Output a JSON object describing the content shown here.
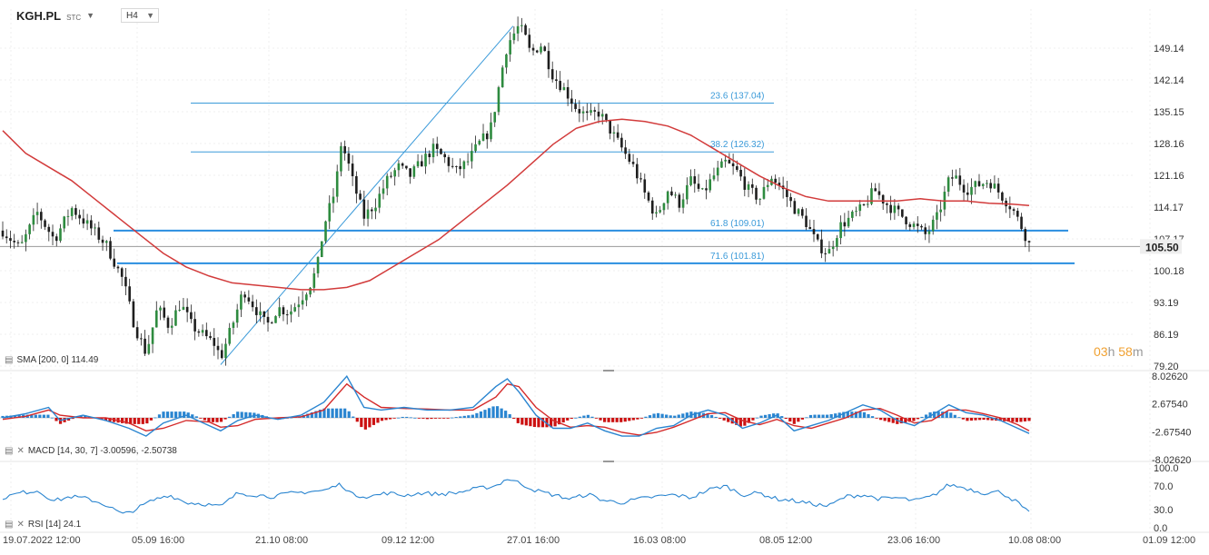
{
  "header": {
    "symbol": "KGH.PL",
    "exchange": "STC",
    "timeframe": "H4"
  },
  "countdown": {
    "hours": "03",
    "h_unit": "h",
    "minutes": "58",
    "m_unit": "m"
  },
  "indicators": {
    "sma": "SMA [200, 0] 114.49",
    "macd": "MACD [14, 30, 7] -3.00596, -2.50738",
    "rsi": "RSI [14] 24.1"
  },
  "colors": {
    "candle": "#2e8b3f",
    "sma": "#d23b3b",
    "fib": "#3a9ad9",
    "macd_line": "#2a85d0",
    "signal_line": "#d42a2a",
    "hist_pos": "#2a85d0",
    "hist_neg": "#cc1111",
    "rsi": "#2a85d0",
    "countdown": "#f0a030"
  },
  "chart_data": [
    {
      "type": "candlestick",
      "title": "KGH.PL",
      "x_ticks": [
        "19.07.2022 12:00",
        "05.09 16:00",
        "21.10 08:00",
        "09.12 12:00",
        "27.01 16:00",
        "16.03 08:00",
        "08.05 12:00",
        "23.06 16:00",
        "10.08 08:00",
        "01.09 12:00"
      ],
      "y_ticks": [
        "79.20",
        "86.19",
        "93.19",
        "100.18",
        "107.17",
        "114.17",
        "121.16",
        "128.16",
        "135.15",
        "142.14",
        "149.14"
      ],
      "ylim": [
        79.2,
        155
      ],
      "last_price": "105.50",
      "sma_label": "SMA [200, 0] 114.49",
      "fibonacci": [
        {
          "label": "23.6 (137.04)",
          "value": 137.04
        },
        {
          "label": "38.2 (126.32)",
          "value": 126.32
        },
        {
          "label": "61.8 (109.01)",
          "value": 109.01
        },
        {
          "label": "71.6 (101.81)",
          "value": 101.81
        }
      ],
      "price_path": [
        [
          0,
          109
        ],
        [
          3,
          105
        ],
        [
          6,
          113
        ],
        [
          9,
          107
        ],
        [
          12,
          114
        ],
        [
          15,
          110
        ],
        [
          18,
          106
        ],
        [
          21,
          98
        ],
        [
          23,
          88
        ],
        [
          25,
          82
        ],
        [
          27,
          92
        ],
        [
          29,
          88
        ],
        [
          31,
          93
        ],
        [
          33,
          88
        ],
        [
          35,
          86
        ],
        [
          37,
          84
        ],
        [
          38,
          81
        ],
        [
          40,
          88
        ],
        [
          42,
          96
        ],
        [
          44,
          92
        ],
        [
          46,
          88
        ],
        [
          48,
          92
        ],
        [
          50,
          91
        ],
        [
          52,
          94
        ],
        [
          54,
          98
        ],
        [
          55,
          102
        ],
        [
          56,
          110
        ],
        [
          58,
          118
        ],
        [
          59,
          128
        ],
        [
          60,
          125
        ],
        [
          61,
          120
        ],
        [
          63,
          112
        ],
        [
          65,
          115
        ],
        [
          67,
          120
        ],
        [
          69,
          123
        ],
        [
          71,
          121
        ],
        [
          73,
          124
        ],
        [
          75,
          127
        ],
        [
          77,
          125
        ],
        [
          79,
          122
        ],
        [
          81,
          124
        ],
        [
          83,
          128
        ],
        [
          85,
          131
        ],
        [
          86,
          137
        ],
        [
          87,
          144
        ],
        [
          88,
          150
        ],
        [
          89,
          152
        ],
        [
          90,
          154
        ],
        [
          91,
          152
        ],
        [
          92,
          148
        ],
        [
          94,
          150
        ],
        [
          96,
          143
        ],
        [
          98,
          140
        ],
        [
          100,
          136
        ],
        [
          102,
          134
        ],
        [
          104,
          135
        ],
        [
          106,
          131
        ],
        [
          108,
          127
        ],
        [
          110,
          123
        ],
        [
          112,
          117
        ],
        [
          114,
          112
        ],
        [
          116,
          118
        ],
        [
          118,
          115
        ],
        [
          120,
          120
        ],
        [
          122,
          117
        ],
        [
          124,
          121
        ],
        [
          126,
          124
        ],
        [
          128,
          122
        ],
        [
          130,
          118
        ],
        [
          132,
          116
        ],
        [
          134,
          121
        ],
        [
          136,
          118
        ],
        [
          138,
          114
        ],
        [
          140,
          111
        ],
        [
          142,
          106
        ],
        [
          144,
          104
        ],
        [
          146,
          110
        ],
        [
          148,
          112
        ],
        [
          150,
          114
        ],
        [
          152,
          118
        ],
        [
          154,
          115
        ],
        [
          156,
          113
        ],
        [
          158,
          111
        ],
        [
          160,
          109
        ],
        [
          161,
          108
        ],
        [
          163,
          112
        ],
        [
          165,
          120
        ],
        [
          166,
          121
        ],
        [
          168,
          118
        ],
        [
          170,
          119
        ],
        [
          172,
          120
        ],
        [
          174,
          117
        ],
        [
          176,
          114
        ],
        [
          178,
          109
        ],
        [
          179,
          106
        ]
      ],
      "sma_path": [
        [
          0,
          131
        ],
        [
          4,
          126
        ],
        [
          8,
          123
        ],
        [
          12,
          120
        ],
        [
          16,
          116
        ],
        [
          20,
          112
        ],
        [
          24,
          108
        ],
        [
          28,
          104
        ],
        [
          32,
          101
        ],
        [
          36,
          99
        ],
        [
          40,
          97.5
        ],
        [
          44,
          97
        ],
        [
          48,
          96.5
        ],
        [
          52,
          96
        ],
        [
          56,
          96
        ],
        [
          60,
          96.5
        ],
        [
          64,
          98
        ],
        [
          68,
          101
        ],
        [
          72,
          104
        ],
        [
          76,
          107
        ],
        [
          80,
          111
        ],
        [
          84,
          115
        ],
        [
          88,
          119
        ],
        [
          92,
          123.5
        ],
        [
          96,
          128
        ],
        [
          100,
          131.5
        ],
        [
          104,
          133
        ],
        [
          108,
          133.5
        ],
        [
          112,
          133
        ],
        [
          116,
          132
        ],
        [
          120,
          130
        ],
        [
          124,
          127
        ],
        [
          128,
          124
        ],
        [
          132,
          121
        ],
        [
          136,
          118.5
        ],
        [
          140,
          116.5
        ],
        [
          144,
          115.5
        ],
        [
          148,
          115.5
        ],
        [
          152,
          115.5
        ],
        [
          156,
          115.5
        ],
        [
          160,
          116
        ],
        [
          164,
          115.5
        ],
        [
          168,
          115.5
        ],
        [
          172,
          115
        ],
        [
          176,
          114.8
        ],
        [
          179,
          114.5
        ]
      ],
      "swing_line": {
        "from": [
          38,
          79.5
        ],
        "to": [
          89,
          154
        ]
      }
    },
    {
      "type": "line",
      "title": "MACD [14, 30, 7] -3.00596, -2.50738",
      "y_ticks": [
        "8.02620",
        "2.67540",
        "-2.67540",
        "-8.02620"
      ],
      "ylim": [
        -8.0262,
        8.0262
      ],
      "macd_last": -3.00596,
      "signal_last": -2.50738,
      "macd_path": [
        [
          0,
          0
        ],
        [
          4,
          0.8
        ],
        [
          8,
          2
        ],
        [
          10,
          -0.5
        ],
        [
          14,
          0.5
        ],
        [
          18,
          -0.5
        ],
        [
          22,
          -2
        ],
        [
          25,
          -3.5
        ],
        [
          28,
          -1
        ],
        [
          32,
          0.5
        ],
        [
          36,
          -1.5
        ],
        [
          38,
          -2.5
        ],
        [
          41,
          -0.5
        ],
        [
          44,
          0.5
        ],
        [
          48,
          -0.3
        ],
        [
          52,
          0.5
        ],
        [
          56,
          3
        ],
        [
          60,
          8
        ],
        [
          63,
          2
        ],
        [
          66,
          1.5
        ],
        [
          70,
          2
        ],
        [
          74,
          1.5
        ],
        [
          78,
          1.5
        ],
        [
          82,
          2
        ],
        [
          86,
          6
        ],
        [
          88,
          7.5
        ],
        [
          90,
          5
        ],
        [
          93,
          0.5
        ],
        [
          96,
          -2
        ],
        [
          99,
          -2
        ],
        [
          102,
          -1
        ],
        [
          105,
          -2.5
        ],
        [
          108,
          -3.5
        ],
        [
          111,
          -3.5
        ],
        [
          114,
          -2
        ],
        [
          117,
          -1.5
        ],
        [
          120,
          0.5
        ],
        [
          123,
          1.5
        ],
        [
          126,
          0.5
        ],
        [
          129,
          -2
        ],
        [
          132,
          -1
        ],
        [
          135,
          0.5
        ],
        [
          138,
          -2.5
        ],
        [
          141,
          -1.5
        ],
        [
          144,
          -0.5
        ],
        [
          147,
          1
        ],
        [
          150,
          2.5
        ],
        [
          153,
          1.5
        ],
        [
          156,
          -0.5
        ],
        [
          159,
          -1.5
        ],
        [
          162,
          0.5
        ],
        [
          165,
          2.5
        ],
        [
          168,
          1
        ],
        [
          171,
          0.5
        ],
        [
          174,
          -0.5
        ],
        [
          177,
          -2
        ],
        [
          179,
          -3
        ]
      ],
      "signal_path": [
        [
          0,
          -0.3
        ],
        [
          4,
          0.3
        ],
        [
          8,
          1.5
        ],
        [
          10,
          0.5
        ],
        [
          14,
          0
        ],
        [
          18,
          0
        ],
        [
          22,
          -1
        ],
        [
          25,
          -2.5
        ],
        [
          28,
          -2
        ],
        [
          32,
          -0.5
        ],
        [
          36,
          -0.8
        ],
        [
          38,
          -1.8
        ],
        [
          41,
          -1.5
        ],
        [
          44,
          -0.3
        ],
        [
          48,
          0
        ],
        [
          52,
          0.2
        ],
        [
          56,
          1.5
        ],
        [
          60,
          6.5
        ],
        [
          63,
          4
        ],
        [
          66,
          2
        ],
        [
          70,
          1.8
        ],
        [
          74,
          1.7
        ],
        [
          78,
          1.5
        ],
        [
          82,
          1.5
        ],
        [
          86,
          4
        ],
        [
          88,
          6.5
        ],
        [
          90,
          6
        ],
        [
          93,
          2
        ],
        [
          96,
          -0.5
        ],
        [
          99,
          -1.8
        ],
        [
          102,
          -1.5
        ],
        [
          105,
          -1.8
        ],
        [
          108,
          -2.8
        ],
        [
          111,
          -3.3
        ],
        [
          114,
          -2.8
        ],
        [
          117,
          -1.8
        ],
        [
          120,
          -0.5
        ],
        [
          123,
          0.8
        ],
        [
          126,
          1
        ],
        [
          129,
          -0.5
        ],
        [
          132,
          -1.3
        ],
        [
          135,
          -0.3
        ],
        [
          138,
          -1.5
        ],
        [
          141,
          -2
        ],
        [
          144,
          -1
        ],
        [
          147,
          0
        ],
        [
          150,
          1.5
        ],
        [
          153,
          1.8
        ],
        [
          156,
          0.5
        ],
        [
          159,
          -1
        ],
        [
          162,
          -0.5
        ],
        [
          165,
          1.5
        ],
        [
          168,
          1.5
        ],
        [
          171,
          0.8
        ],
        [
          174,
          0
        ],
        [
          177,
          -1.3
        ],
        [
          179,
          -2.5
        ]
      ]
    },
    {
      "type": "line",
      "title": "RSI [14] 24.1",
      "y_ticks": [
        "100.0",
        "70.0",
        "30.0",
        "0.0"
      ],
      "ylim": [
        0,
        100
      ],
      "rsi_last": 24.1,
      "rsi_path": [
        [
          0,
          50
        ],
        [
          3,
          58
        ],
        [
          6,
          62
        ],
        [
          9,
          45
        ],
        [
          12,
          52
        ],
        [
          15,
          48
        ],
        [
          18,
          38
        ],
        [
          21,
          22
        ],
        [
          23,
          30
        ],
        [
          26,
          45
        ],
        [
          29,
          55
        ],
        [
          32,
          42
        ],
        [
          35,
          40
        ],
        [
          38,
          35
        ],
        [
          41,
          58
        ],
        [
          44,
          55
        ],
        [
          47,
          52
        ],
        [
          50,
          57
        ],
        [
          53,
          60
        ],
        [
          56,
          62
        ],
        [
          59,
          73
        ],
        [
          61,
          55
        ],
        [
          64,
          52
        ],
        [
          67,
          58
        ],
        [
          70,
          54
        ],
        [
          73,
          58
        ],
        [
          76,
          56
        ],
        [
          79,
          58
        ],
        [
          82,
          64
        ],
        [
          86,
          70
        ],
        [
          88,
          82
        ],
        [
          90,
          75
        ],
        [
          93,
          62
        ],
        [
          96,
          55
        ],
        [
          99,
          48
        ],
        [
          102,
          56
        ],
        [
          105,
          45
        ],
        [
          108,
          42
        ],
        [
          111,
          48
        ],
        [
          114,
          52
        ],
        [
          117,
          55
        ],
        [
          120,
          50
        ],
        [
          123,
          63
        ],
        [
          126,
          70
        ],
        [
          129,
          55
        ],
        [
          132,
          58
        ],
        [
          135,
          48
        ],
        [
          138,
          45
        ],
        [
          141,
          40
        ],
        [
          144,
          36
        ],
        [
          147,
          52
        ],
        [
          150,
          55
        ],
        [
          153,
          48
        ],
        [
          156,
          50
        ],
        [
          159,
          45
        ],
        [
          162,
          52
        ],
        [
          165,
          72
        ],
        [
          168,
          66
        ],
        [
          171,
          58
        ],
        [
          174,
          60
        ],
        [
          177,
          42
        ],
        [
          179,
          24
        ]
      ]
    }
  ]
}
